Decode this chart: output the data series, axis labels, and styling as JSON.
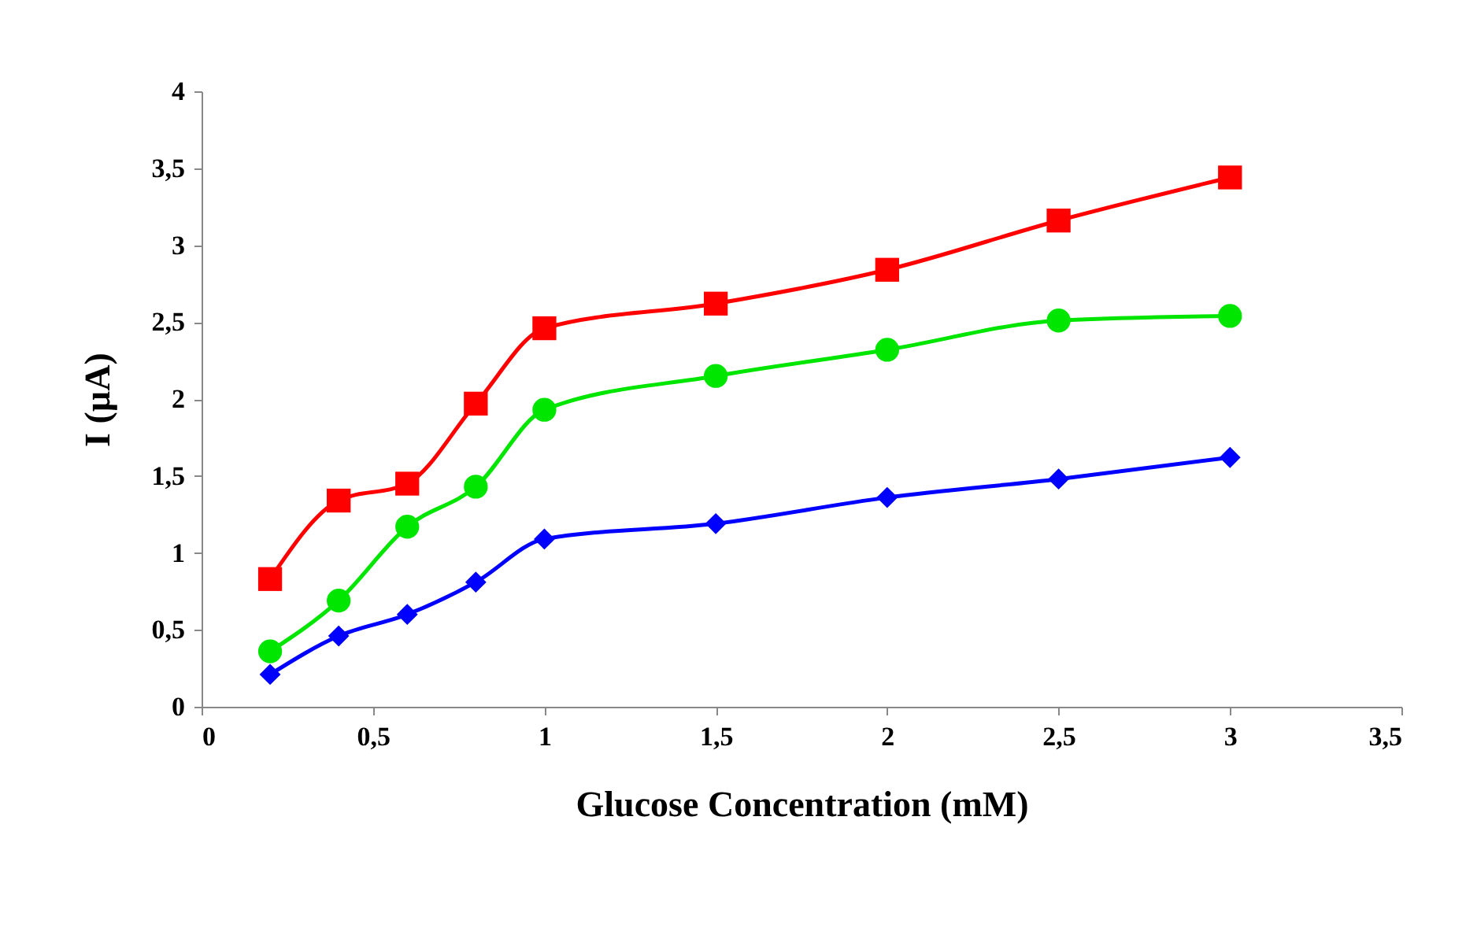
{
  "chart_data": {
    "type": "line",
    "xlabel": "Glucose Concentration  (mM)",
    "ylabel": "I (µA)",
    "x": [
      0.2,
      0.4,
      0.6,
      0.8,
      1,
      1.5,
      2,
      2.5,
      3
    ],
    "series": [
      {
        "color": "#ff0000",
        "marker": "square",
        "values": [
          0.83,
          1.34,
          1.45,
          1.97,
          2.46,
          2.62,
          2.84,
          3.16,
          3.44
        ]
      },
      {
        "color": "#00e600",
        "marker": "circle",
        "values": [
          0.36,
          0.69,
          1.17,
          1.43,
          1.93,
          2.15,
          2.32,
          2.51,
          2.54
        ]
      },
      {
        "color": "#0000ff",
        "marker": "diamond",
        "values": [
          0.21,
          0.46,
          0.6,
          0.81,
          1.09,
          1.19,
          1.36,
          1.48,
          1.62
        ]
      }
    ],
    "xlim": [
      0,
      3.5
    ],
    "xticks": [
      0,
      {
        "value": 0.5,
        "label": "0,5"
      },
      1,
      {
        "value": 1.5,
        "label": "1,5"
      },
      2,
      {
        "value": 2.5,
        "label": "2,5"
      },
      3,
      {
        "value": 3.5,
        "label": "3,5"
      }
    ],
    "ylim": [
      0,
      4
    ],
    "yticks": [
      0,
      {
        "value": 0.5,
        "label": "0,5"
      },
      1,
      {
        "value": 1.5,
        "label": "1,5"
      },
      2,
      {
        "value": 2.5,
        "label": "2,5"
      },
      3,
      {
        "value": 3.5,
        "label": "3,5"
      },
      4
    ],
    "grid": false,
    "line_style": "solid"
  }
}
